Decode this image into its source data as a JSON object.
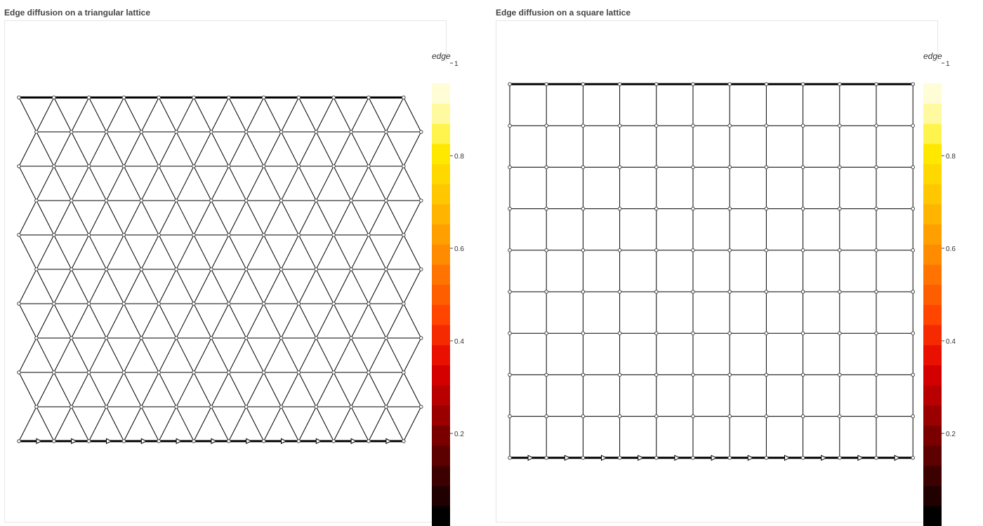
{
  "panels": [
    {
      "id": "triangular",
      "title": "Edge diffusion on a triangular lattice",
      "lattice": "triangular",
      "rows": 11,
      "cols": 12,
      "colorbar": {
        "title": "edge",
        "ticks": [
          "0.2",
          "0.4",
          "0.6",
          "0.8",
          "1"
        ]
      }
    },
    {
      "id": "square",
      "title": "Edge diffusion on a square lattice",
      "lattice": "square",
      "rows": 10,
      "cols": 12,
      "colorbar": {
        "title": "edge",
        "ticks": [
          "0.2",
          "0.4",
          "0.6",
          "0.8",
          "1"
        ]
      }
    }
  ],
  "colorscale": [
    "#000000",
    "#200000",
    "#3d0000",
    "#5c0000",
    "#7a0000",
    "#9a0000",
    "#b80000",
    "#d40000",
    "#ea1000",
    "#f52a00",
    "#ff4500",
    "#ff5e00",
    "#ff7400",
    "#ff8b00",
    "#ffa000",
    "#ffb400",
    "#ffc700",
    "#ffd800",
    "#ffe800",
    "#fff44d",
    "#fffaa0",
    "#fffdd5",
    "#ffffff"
  ]
}
